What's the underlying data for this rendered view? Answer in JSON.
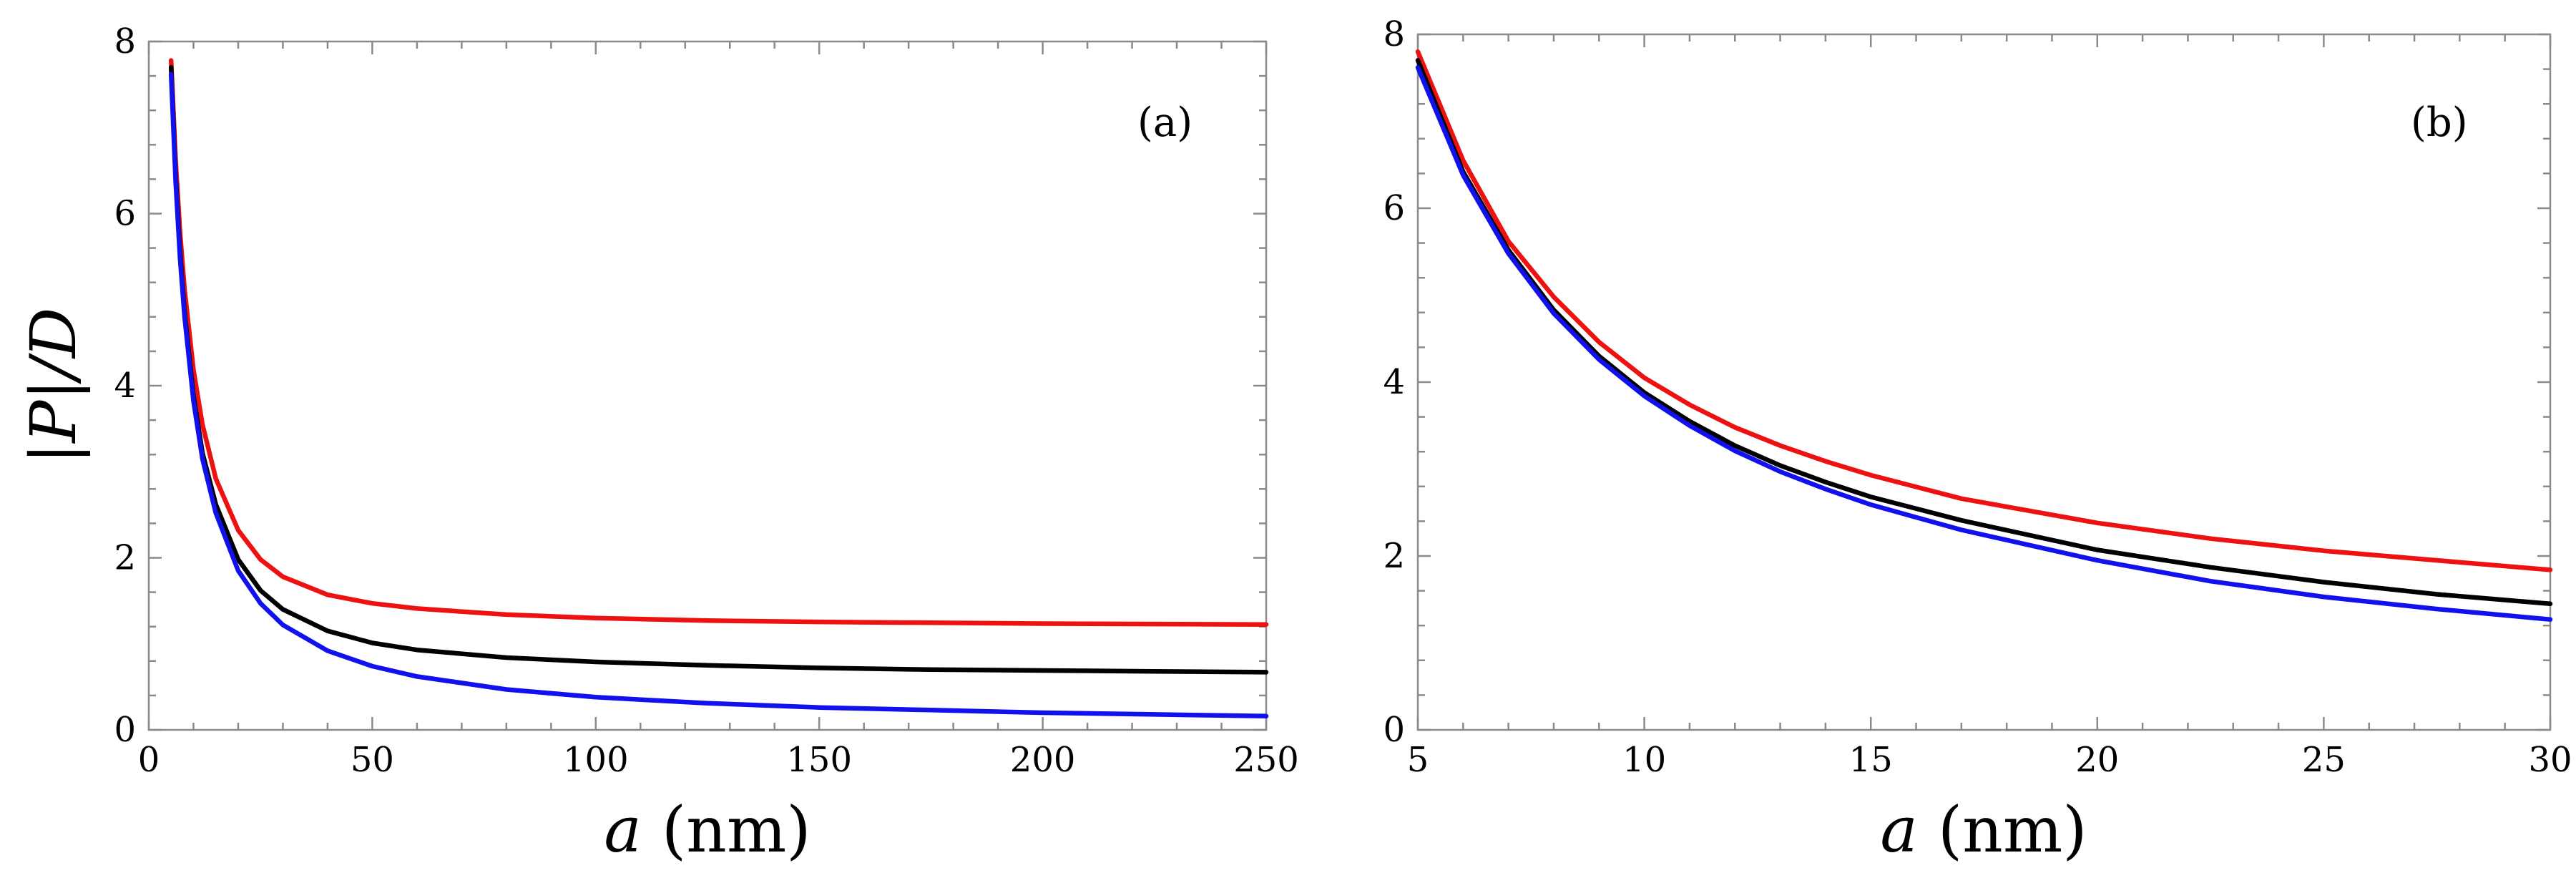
{
  "chart_data": [
    {
      "type": "line",
      "panel_label": "(a)",
      "xlabel_var": "a",
      "xlabel_unit": " (nm)",
      "ylabel": "|P|/D",
      "xlim": [
        0,
        250
      ],
      "ylim": [
        0,
        8
      ],
      "xticks": [
        0,
        50,
        100,
        150,
        200,
        250
      ],
      "xtick_labels": [
        "0",
        "50",
        "100",
        "150",
        "200",
        "250"
      ],
      "yticks": [
        0,
        2,
        4,
        6,
        8
      ],
      "ytick_labels": [
        "0",
        "2",
        "4",
        "6",
        "8"
      ],
      "grid": false,
      "series": [
        {
          "name": "red",
          "color": "#ee1111",
          "x": [
            5,
            6,
            7,
            8,
            10,
            12,
            15,
            20,
            25,
            30,
            40,
            50,
            60,
            80,
            100,
            125,
            150,
            175,
            200,
            225,
            250
          ],
          "y": [
            7.78,
            6.62,
            5.78,
            5.12,
            4.18,
            3.55,
            2.92,
            2.32,
            1.98,
            1.78,
            1.57,
            1.47,
            1.41,
            1.34,
            1.3,
            1.27,
            1.255,
            1.245,
            1.235,
            1.23,
            1.225
          ]
        },
        {
          "name": "black",
          "color": "#000000",
          "x": [
            5,
            6,
            7,
            8,
            10,
            12,
            15,
            20,
            25,
            30,
            40,
            50,
            60,
            80,
            100,
            125,
            150,
            175,
            200,
            225,
            250
          ],
          "y": [
            7.7,
            6.45,
            5.55,
            4.85,
            3.88,
            3.22,
            2.62,
            1.98,
            1.62,
            1.4,
            1.15,
            1.01,
            0.93,
            0.84,
            0.79,
            0.75,
            0.72,
            0.7,
            0.69,
            0.68,
            0.67
          ]
        },
        {
          "name": "blue",
          "color": "#1111ee",
          "x": [
            5,
            6,
            7,
            8,
            10,
            12,
            15,
            20,
            25,
            30,
            40,
            50,
            60,
            80,
            100,
            125,
            150,
            175,
            200,
            225,
            250
          ],
          "y": [
            7.62,
            6.38,
            5.48,
            4.8,
            3.82,
            3.15,
            2.52,
            1.85,
            1.47,
            1.22,
            0.92,
            0.74,
            0.62,
            0.47,
            0.38,
            0.31,
            0.26,
            0.23,
            0.2,
            0.18,
            0.16
          ]
        }
      ]
    },
    {
      "type": "line",
      "panel_label": "(b)",
      "xlabel_var": "a",
      "xlabel_unit": " (nm)",
      "ylabel": "",
      "xlim": [
        5,
        30
      ],
      "ylim": [
        0,
        8
      ],
      "xticks": [
        5,
        10,
        15,
        20,
        25,
        30
      ],
      "xtick_labels": [
        "5",
        "10",
        "15",
        "20",
        "25",
        "30"
      ],
      "yticks": [
        0,
        2,
        4,
        6,
        8
      ],
      "ytick_labels": [
        "0",
        "2",
        "4",
        "6",
        "8"
      ],
      "grid": false,
      "series": [
        {
          "name": "red",
          "color": "#ee1111",
          "x": [
            5,
            6,
            7,
            8,
            9,
            10,
            11,
            12,
            13,
            14,
            15,
            17,
            20,
            22.5,
            25,
            27.5,
            30
          ],
          "y": [
            7.8,
            6.55,
            5.62,
            4.98,
            4.46,
            4.05,
            3.74,
            3.48,
            3.27,
            3.09,
            2.93,
            2.66,
            2.38,
            2.2,
            2.06,
            1.95,
            1.84
          ]
        },
        {
          "name": "black",
          "color": "#000000",
          "x": [
            5,
            6,
            7,
            8,
            9,
            10,
            11,
            12,
            13,
            14,
            15,
            17,
            20,
            22.5,
            25,
            27.5,
            30
          ],
          "y": [
            7.7,
            6.42,
            5.52,
            4.83,
            4.3,
            3.88,
            3.55,
            3.27,
            3.04,
            2.85,
            2.68,
            2.41,
            2.07,
            1.87,
            1.7,
            1.56,
            1.45
          ]
        },
        {
          "name": "blue",
          "color": "#1111ee",
          "x": [
            5,
            6,
            7,
            8,
            9,
            10,
            11,
            12,
            13,
            14,
            15,
            17,
            20,
            22.5,
            25,
            27.5,
            30
          ],
          "y": [
            7.62,
            6.38,
            5.48,
            4.79,
            4.26,
            3.84,
            3.5,
            3.21,
            2.97,
            2.77,
            2.59,
            2.3,
            1.95,
            1.71,
            1.53,
            1.39,
            1.27
          ]
        }
      ]
    }
  ]
}
